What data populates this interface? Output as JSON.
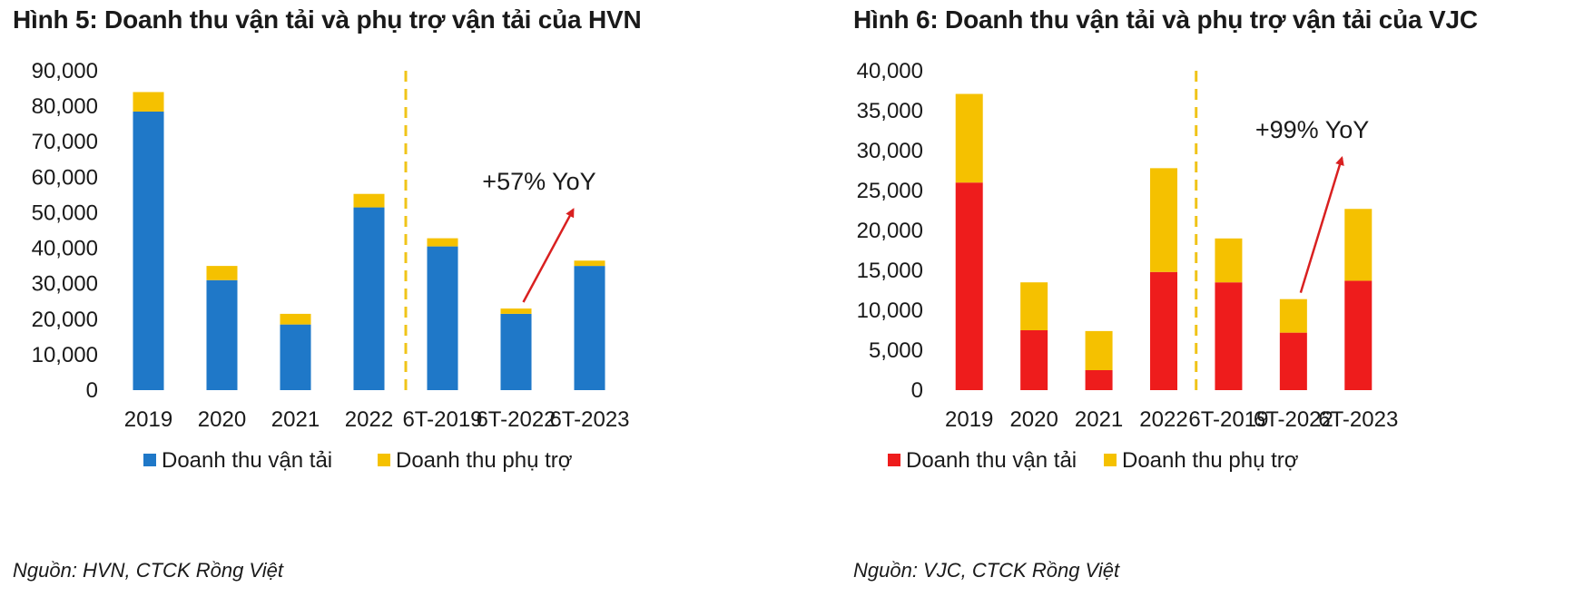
{
  "figures": [
    {
      "title": "Hình 5: Doanh thu vận tải và phụ trợ vận tải của HVN",
      "source": "Nguồn: HVN, CTCK Rồng Việt",
      "annotation": "+57% YoY"
    },
    {
      "title": "Hình 6: Doanh thu vận tải và phụ trợ vận tải của VJC",
      "source": "Nguồn: VJC, CTCK Rồng Việt",
      "annotation": "+99% YoY"
    }
  ],
  "colors": {
    "hvn_transport": "#1f78c8",
    "vjc_transport": "#ee1c1c",
    "ancillary": "#f5c100",
    "divider": "#f0c419",
    "arrow": "#d92020"
  },
  "chart_data": [
    {
      "type": "bar",
      "stacked": true,
      "title": "Hình 5: Doanh thu vận tải và phụ trợ vận tải của HVN",
      "categories": [
        "2019",
        "2020",
        "2021",
        "2022",
        "6T-2019",
        "6T-2022",
        "6T-2023"
      ],
      "series": [
        {
          "name": "Doanh thu vận tải",
          "values": [
            78500,
            31000,
            18500,
            51500,
            40500,
            21500,
            35000
          ]
        },
        {
          "name": "Doanh thu phụ trợ",
          "values": [
            5500,
            4000,
            3000,
            3800,
            2300,
            1500,
            1500
          ]
        }
      ],
      "ylim": [
        0,
        90000
      ],
      "yticks": [
        "0",
        "10,000",
        "20,000",
        "30,000",
        "40,000",
        "50,000",
        "60,000",
        "70,000",
        "80,000",
        "90,000"
      ],
      "xlabel": "",
      "ylabel": "",
      "legend": "bottom",
      "divider_after": "2022",
      "annotations": [
        {
          "text": "+57% YoY",
          "from": "6T-2022",
          "to": "6T-2023"
        }
      ]
    },
    {
      "type": "bar",
      "stacked": true,
      "title": "Hình 6: Doanh thu vận tải và phụ trợ vận tải của VJC",
      "categories": [
        "2019",
        "2020",
        "2021",
        "2022",
        "6T-2019",
        "6T-2022",
        "6T-2023"
      ],
      "series": [
        {
          "name": "Doanh thu vận tải",
          "values": [
            26000,
            7500,
            2500,
            14800,
            13500,
            7200,
            13700
          ]
        },
        {
          "name": "Doanh thu phụ trợ",
          "values": [
            11100,
            6000,
            4900,
            13000,
            5500,
            4200,
            9000
          ]
        }
      ],
      "ylim": [
        0,
        40000
      ],
      "yticks": [
        "0",
        "5,000",
        "10,000",
        "15,000",
        "20,000",
        "25,000",
        "30,000",
        "35,000",
        "40,000"
      ],
      "xlabel": "",
      "ylabel": "",
      "legend": "bottom",
      "divider_after": "2022",
      "annotations": [
        {
          "text": "+99% YoY",
          "from": "6T-2022",
          "to": "6T-2023"
        }
      ]
    }
  ]
}
